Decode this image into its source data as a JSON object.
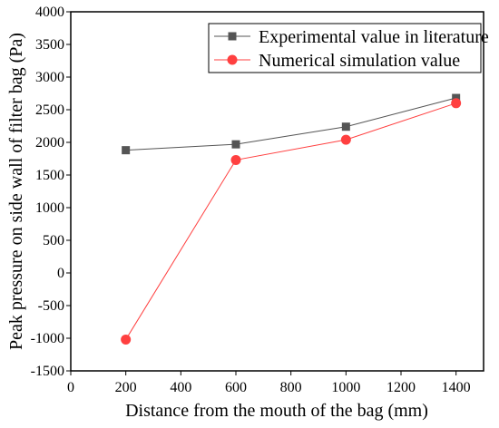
{
  "chart_data": {
    "type": "line",
    "title": "",
    "xlabel": "Distance from the mouth of the bag (mm)",
    "ylabel": "Peak pressure on side wall of filter bag (Pa)",
    "xlim": [
      0,
      1500
    ],
    "ylim": [
      -1500,
      4000
    ],
    "xticks": [
      0,
      200,
      400,
      600,
      800,
      1000,
      1200,
      1400
    ],
    "yticks": [
      -1500,
      -1000,
      -500,
      0,
      500,
      1000,
      1500,
      2000,
      2500,
      3000,
      3500,
      4000
    ],
    "grid": false,
    "legend_position": "top-right",
    "x": [
      200,
      600,
      1000,
      1400
    ],
    "series": [
      {
        "name": "Experimental value in literature",
        "values": [
          1880,
          1970,
          2240,
          2680
        ],
        "color": "#555555",
        "marker": "square"
      },
      {
        "name": "Numerical simulation value",
        "values": [
          -1020,
          1730,
          2040,
          2600
        ],
        "color": "#ff4040",
        "marker": "circle"
      }
    ]
  }
}
